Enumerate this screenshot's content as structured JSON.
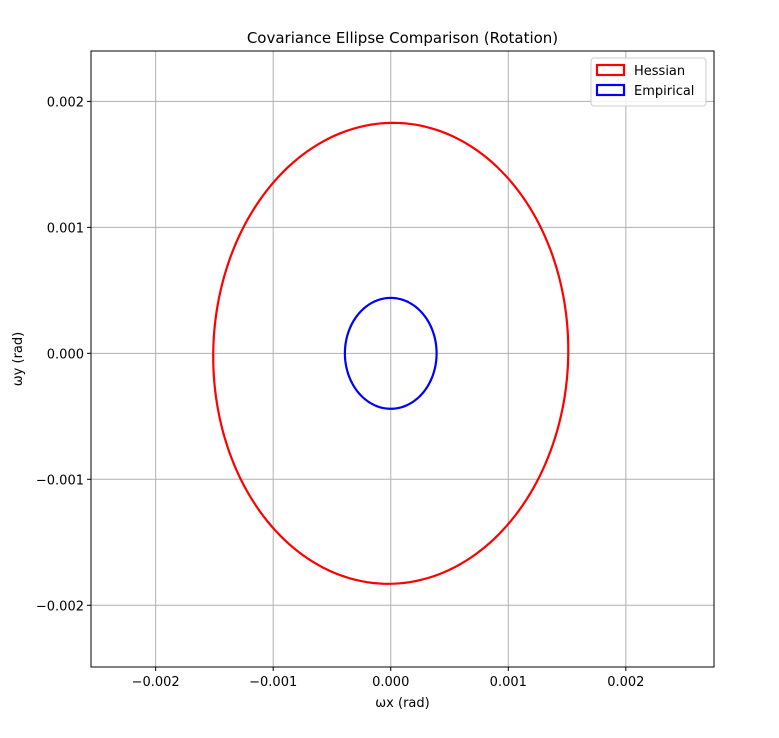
{
  "chart_data": {
    "type": "line",
    "title": "Covariance Ellipse Comparison (Rotation)",
    "xlabel": "ωx (rad)",
    "ylabel": "ωy (rad)",
    "xlim": [
      -0.00255,
      0.00275
    ],
    "ylim": [
      -0.00249,
      0.0024
    ],
    "xticks": [
      -0.002,
      -0.001,
      0.0,
      0.001,
      0.002
    ],
    "xtick_labels": [
      "−0.002",
      "−0.001",
      "0.000",
      "0.001",
      "0.002"
    ],
    "yticks": [
      -0.002,
      -0.001,
      0.0,
      0.001,
      0.002
    ],
    "ytick_labels": [
      "−0.002",
      "−0.001",
      "0.000",
      "0.001",
      "0.002"
    ],
    "grid": true,
    "legend_position": "top-right",
    "series": [
      {
        "name": "Hessian",
        "color": "#ff0000",
        "shape": "ellipse",
        "center": [
          0.0,
          0.0
        ],
        "semi_axis_x": 0.00151,
        "semi_axis_y": 0.00183,
        "rotation_deg": -2.0
      },
      {
        "name": "Empirical",
        "color": "#0000ff",
        "shape": "ellipse",
        "center": [
          0.0,
          0.0
        ],
        "semi_axis_x": 0.00039,
        "semi_axis_y": 0.00044,
        "rotation_deg": 0.0
      }
    ]
  }
}
